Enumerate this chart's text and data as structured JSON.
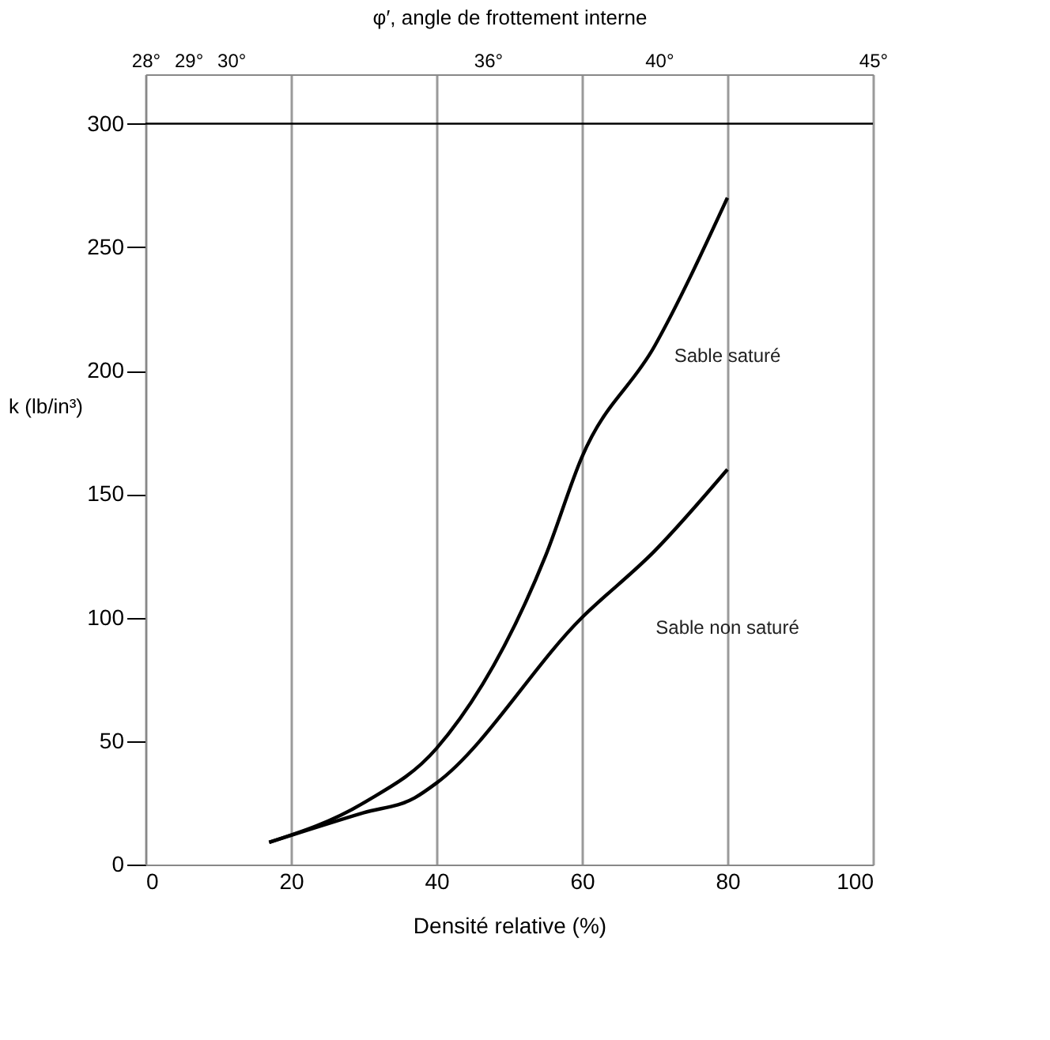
{
  "chart_data": {
    "type": "line",
    "xlabel": "Densité relative (%)",
    "ylabel": "k (lb/in³)",
    "x2label": "φ′, angle de frottement interne",
    "xlim": [
      0,
      100
    ],
    "xticks": [
      0,
      20,
      40,
      60,
      80,
      100
    ],
    "ylim": [
      0,
      320
    ],
    "yticks": [
      0,
      50,
      100,
      150,
      200,
      250,
      300
    ],
    "x2lim": [
      28,
      45
    ],
    "x2ticks": [
      {
        "value": 28,
        "label": "28°"
      },
      {
        "value": 29,
        "label": "29°"
      },
      {
        "value": 30,
        "label": "30°"
      },
      {
        "value": 36,
        "label": "36°"
      },
      {
        "value": 40,
        "label": "40°"
      },
      {
        "value": 45,
        "label": "45°"
      }
    ],
    "series": [
      {
        "color": "#000000",
        "x": [
          17,
          30,
          40,
          55,
          60,
          70,
          80
        ],
        "values": [
          9,
          25,
          47,
          125,
          165,
          210,
          270
        ]
      },
      {
        "color": "#000000",
        "x": [
          17,
          30,
          37,
          40,
          60,
          70,
          80
        ],
        "values": [
          9,
          21,
          27,
          33,
          100,
          127,
          160
        ]
      }
    ],
    "annotations": [
      "Sable saturé",
      "Sable non saturé"
    ],
    "ref_lines": [
      {
        "axis": "y",
        "value": 300,
        "color": "#000000"
      }
    ],
    "grid": "x",
    "marker": "none",
    "line_style": "solid"
  }
}
